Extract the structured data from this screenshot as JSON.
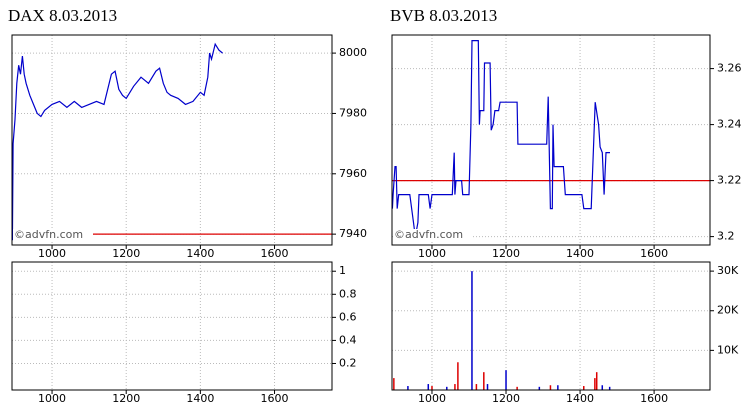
{
  "chart_data": [
    {
      "type": "line",
      "title": "DAX 8.03.2013",
      "watermark": "©advfn.com",
      "color": "#0000cc",
      "grid": true,
      "x": [
        893,
        895,
        900,
        905,
        910,
        915,
        920,
        925,
        930,
        940,
        950,
        960,
        970,
        980,
        1000,
        1020,
        1040,
        1060,
        1080,
        1100,
        1120,
        1140,
        1160,
        1170,
        1180,
        1190,
        1200,
        1220,
        1240,
        1260,
        1280,
        1290,
        1300,
        1310,
        1320,
        1340,
        1360,
        1380,
        1400,
        1410,
        1420,
        1425,
        1430,
        1440,
        1450,
        1460
      ],
      "values": [
        7938,
        7970,
        7978,
        7990,
        7996,
        7993,
        7999,
        7993,
        7990,
        7986,
        7983,
        7980,
        7979,
        7981,
        7983,
        7984,
        7982,
        7984,
        7982,
        7983,
        7984,
        7983,
        7993,
        7994,
        7988,
        7986,
        7985,
        7989,
        7992,
        7990,
        7994,
        7995,
        7990,
        7987,
        7986,
        7985,
        7983,
        7984,
        7987,
        7986,
        7992,
        8000,
        7998,
        8003,
        8001,
        8000
      ],
      "reference_line": {
        "value": 7940,
        "color": "#dd0000"
      },
      "xlim": [
        892,
        1755
      ],
      "xticks": [
        1000,
        1200,
        1400,
        1600
      ],
      "ylim": [
        7936.4,
        8006
      ],
      "yticks": [
        7940,
        7960,
        7980,
        8000
      ]
    },
    {
      "type": "bar",
      "grid": true,
      "x": [],
      "values": [],
      "colors": [],
      "xlim": [
        892,
        1755
      ],
      "xticks": [
        1000,
        1200,
        1400,
        1600
      ],
      "ylim": [
        -0.03,
        1.08
      ],
      "yticks": [
        0.2,
        0.4,
        0.6,
        0.8,
        1
      ]
    },
    {
      "type": "line",
      "title": "BVB 8.03.2013",
      "watermark": "©advfn.com",
      "color": "#0000cc",
      "grid": true,
      "x": [
        893,
        895,
        900,
        903,
        906,
        910,
        940,
        950,
        955,
        962,
        965,
        990,
        995,
        1000,
        1055,
        1060,
        1062,
        1065,
        1080,
        1083,
        1100,
        1105,
        1108,
        1125,
        1128,
        1130,
        1140,
        1142,
        1157,
        1160,
        1165,
        1170,
        1180,
        1184,
        1230,
        1232,
        1238,
        1310,
        1314,
        1320,
        1325,
        1327,
        1330,
        1335,
        1355,
        1360,
        1400,
        1405,
        1410,
        1416,
        1430,
        1441,
        1450,
        1454,
        1460,
        1465,
        1470,
        1481
      ],
      "values": [
        3.21,
        3.215,
        3.225,
        3.225,
        3.21,
        3.215,
        3.215,
        3.205,
        3.2,
        3.205,
        3.215,
        3.215,
        3.21,
        3.215,
        3.215,
        3.23,
        3.215,
        3.22,
        3.22,
        3.215,
        3.215,
        3.24,
        3.27,
        3.27,
        3.24,
        3.245,
        3.245,
        3.262,
        3.262,
        3.238,
        3.24,
        3.245,
        3.245,
        3.248,
        3.248,
        3.233,
        3.233,
        3.233,
        3.25,
        3.21,
        3.21,
        3.24,
        3.225,
        3.225,
        3.225,
        3.215,
        3.215,
        3.215,
        3.21,
        3.21,
        3.21,
        3.248,
        3.24,
        3.232,
        3.23,
        3.215,
        3.23,
        3.23
      ],
      "reference_line": {
        "value": 3.22,
        "color": "#dd0000"
      },
      "xlim": [
        892,
        1751
      ],
      "xticks": [
        1000,
        1200,
        1400,
        1600
      ],
      "ylim": [
        3.197,
        3.272
      ],
      "yticks": [
        3.2,
        3.22,
        3.24,
        3.26
      ]
    },
    {
      "type": "bar",
      "grid": true,
      "x": [
        897,
        935,
        990,
        1000,
        1040,
        1062,
        1070,
        1108,
        1120,
        1140,
        1150,
        1200,
        1230,
        1290,
        1320,
        1340,
        1410,
        1440,
        1445,
        1460,
        1480
      ],
      "values": [
        3000,
        1000,
        1500,
        1000,
        800,
        1500,
        7000,
        30000,
        1500,
        4500,
        1500,
        5000,
        800,
        800,
        1200,
        1200,
        1000,
        3000,
        4500,
        1200,
        800
      ],
      "colors": [
        "#dd0000",
        "#0000cc",
        "#0000cc",
        "#dd0000",
        "#0000cc",
        "#dd0000",
        "#dd0000",
        "#0000cc",
        "#dd0000",
        "#dd0000",
        "#0000cc",
        "#0000cc",
        "#dd0000",
        "#0000cc",
        "#dd0000",
        "#0000cc",
        "#dd0000",
        "#dd0000",
        "#dd0000",
        "#0000cc",
        "#0000cc"
      ],
      "xlim": [
        892,
        1751
      ],
      "xticks": [
        1000,
        1200,
        1400,
        1600
      ],
      "ylim": [
        0,
        32300
      ],
      "yticks": [
        {
          "value": 10000,
          "label": "10K"
        },
        {
          "value": 20000,
          "label": "20K"
        },
        {
          "value": 30000,
          "label": "30K"
        }
      ]
    }
  ]
}
